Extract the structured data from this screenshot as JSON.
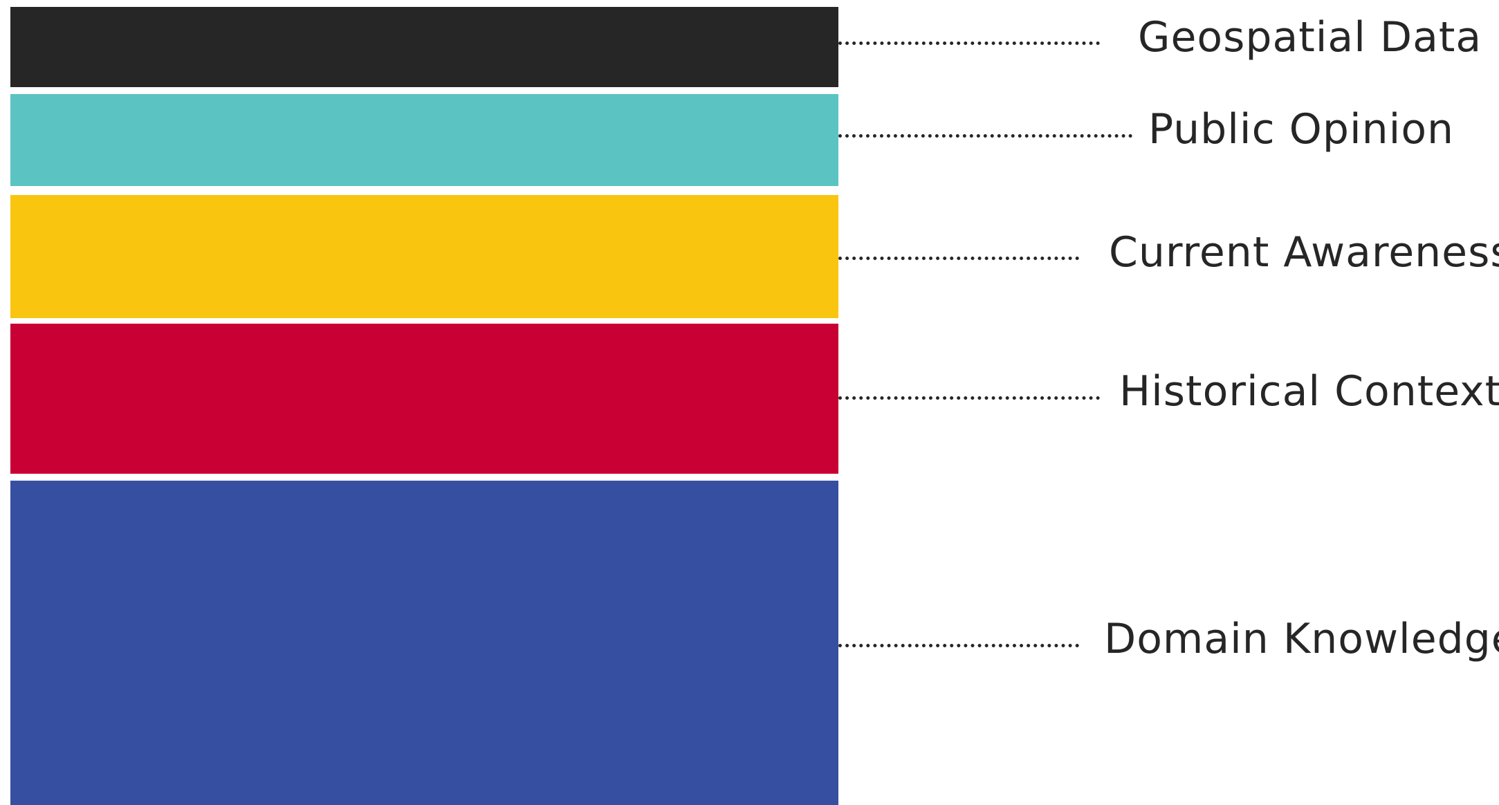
{
  "layers": [
    {
      "label": "Geospatial Data",
      "color": "#262626"
    },
    {
      "label": "Public Opinion",
      "color": "#5bc4c3"
    },
    {
      "label": "Current Awareness",
      "color": "#f9c50f"
    },
    {
      "label": "Historical Context",
      "color": "#c90033"
    },
    {
      "label": "Domain Knowledge",
      "color": "#364fa0"
    }
  ]
}
